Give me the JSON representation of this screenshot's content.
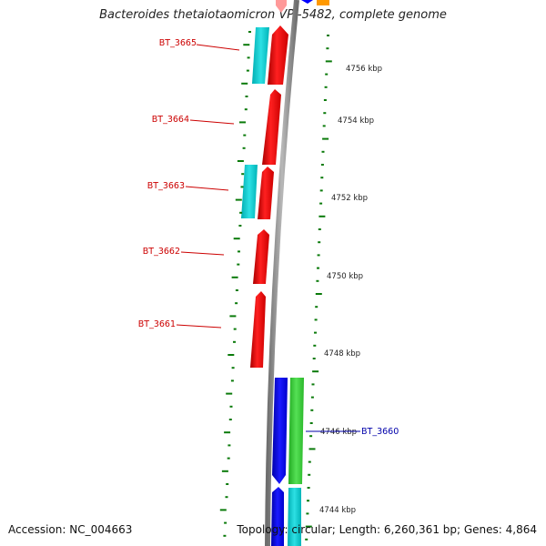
{
  "title": "Bacteroides thetaiotaomicron VPI-5482, complete genome",
  "footer": {
    "accession": "Accession: NC_004663",
    "summary": "Topology: circular; Length: 6,260,361 bp; Genes: 4,864"
  },
  "colors": {
    "forward_gene": "#ff0000",
    "reverse_gene": "#0000ff",
    "cyan_feature": "#00c8cc",
    "green_feature": "#33cc33",
    "orange_feature": "#ff9900",
    "backbone": "#8a8a8a",
    "tick_green": "#0a7a0a",
    "label_red": "#cc0000",
    "label_blue": "#0000aa"
  },
  "scale_labels": [
    "4756 kbp",
    "4754 kbp",
    "4752 kbp",
    "4750 kbp",
    "4748 kbp",
    "4746 kbp",
    "4744 kbp"
  ],
  "gene_labels": [
    {
      "name": "BT_3665",
      "color": "#cc0000"
    },
    {
      "name": "BT_3664",
      "color": "#cc0000"
    },
    {
      "name": "BT_3663",
      "color": "#cc0000"
    },
    {
      "name": "BT_3662",
      "color": "#cc0000"
    },
    {
      "name": "BT_3661",
      "color": "#cc0000"
    },
    {
      "name": "BT_3660",
      "color": "#0000aa"
    }
  ]
}
